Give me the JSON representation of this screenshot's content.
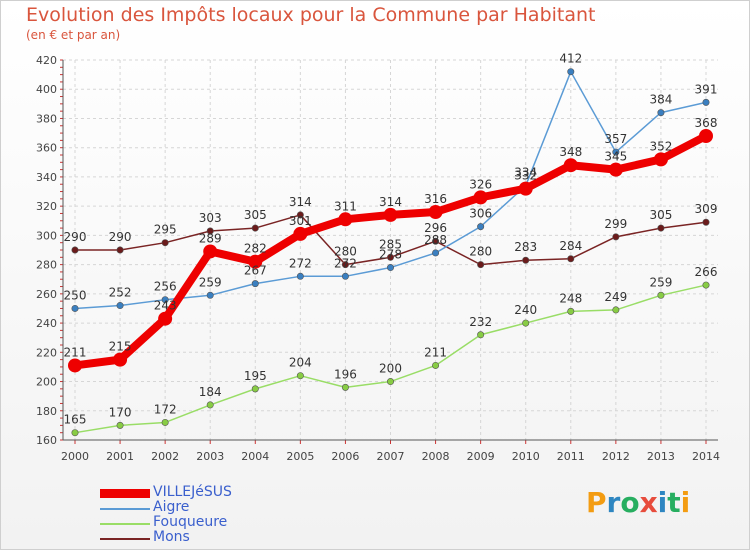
{
  "title": "Evolution des Impôts locaux pour la Commune par Habitant",
  "subtitle": "(en € et par an)",
  "logo": {
    "text": "Proxiti",
    "letters": [
      "P",
      "r",
      "o",
      "x",
      "i",
      "t",
      "i"
    ],
    "colors": [
      "#f39c12",
      "#2e86c1",
      "#27ae60",
      "#e74c3c",
      "#2e86c1",
      "#27ae60",
      "#f39c12"
    ]
  },
  "chart_data": {
    "type": "line",
    "title": "Evolution des Impôts locaux pour la Commune par Habitant",
    "subtitle": "(en € et par an)",
    "x": [
      "2000",
      "2001",
      "2002",
      "2003",
      "2004",
      "2005",
      "2006",
      "2007",
      "2008",
      "2009",
      "2010",
      "2011",
      "2012",
      "2013",
      "2014"
    ],
    "ylim": [
      160,
      420
    ],
    "yticks": [
      160,
      180,
      200,
      220,
      240,
      260,
      280,
      300,
      320,
      340,
      360,
      380,
      400,
      420
    ],
    "grid": true,
    "series": [
      {
        "name": "Mons",
        "color": "#7a2424",
        "marker": "#6b1b1b",
        "values": [
          290,
          290,
          295,
          303,
          305,
          314,
          280,
          285,
          296,
          280,
          283,
          284,
          299,
          305,
          309
        ],
        "labels": [
          "290",
          "290",
          "295",
          "303",
          "305",
          "314",
          "280",
          "285",
          "296",
          "280",
          "283",
          "284",
          "299",
          "305",
          "309"
        ]
      },
      {
        "name": "Fouqueure",
        "color": "#99dd66",
        "marker": "#88cc44",
        "values": [
          165,
          170,
          172,
          184,
          195,
          204,
          196,
          200,
          211,
          232,
          240,
          248,
          249,
          259,
          266
        ],
        "labels": [
          "165",
          "170",
          "172",
          "184",
          "195",
          "204",
          "196",
          "200",
          "211",
          "232",
          "240",
          "248",
          "249",
          "259",
          "266"
        ]
      },
      {
        "name": "Aigre",
        "color": "#5b9bd5",
        "marker": "#3a7fc0",
        "values": [
          250,
          252,
          256,
          259,
          267,
          272,
          272,
          278,
          288,
          306,
          334,
          412,
          357,
          384,
          391
        ],
        "labels": [
          "250",
          "252",
          "256",
          "259",
          "267",
          "272",
          "272",
          "278",
          "288",
          "306",
          "334",
          "412",
          "357",
          "384",
          "391"
        ]
      },
      {
        "name": "VILLEJéSUS",
        "color": "#ee0000",
        "marker": "#ee0000",
        "values": [
          211,
          215,
          243,
          289,
          282,
          301,
          311,
          314,
          316,
          326,
          332,
          348,
          345,
          352,
          368
        ],
        "labels": [
          "211",
          "215",
          "243",
          "289",
          "282",
          "301",
          "311",
          "314",
          "316",
          "326",
          "332",
          "348",
          "345",
          "352",
          "368"
        ]
      }
    ],
    "legend": {
      "position": "bottom-left",
      "entries": [
        "VILLEJéSUS",
        "Aigre",
        "Fouqueure",
        "Mons"
      ]
    }
  }
}
